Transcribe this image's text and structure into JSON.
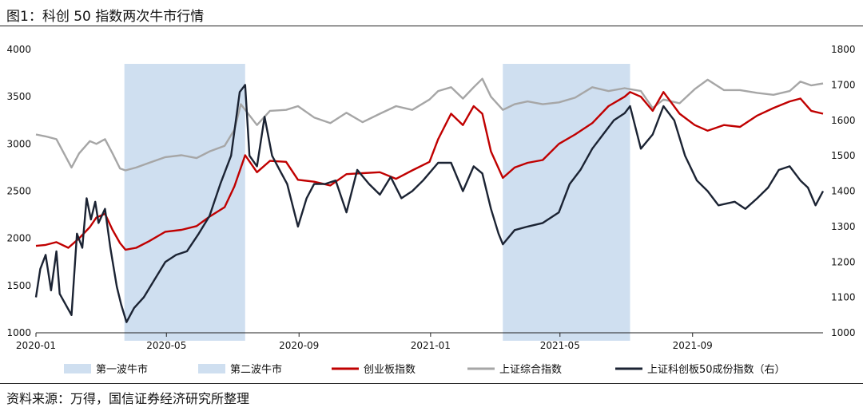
{
  "header": {
    "title": "图1：科创 50 指数两次牛市行情"
  },
  "footer": {
    "source": "资料来源：万得，国信证券经济研究所整理"
  },
  "colors": {
    "band": "#cfdff0",
    "chinext": "#c00000",
    "sse": "#a6a6a6",
    "star50": "#1b2333",
    "axis": "#222222"
  },
  "chart_data": {
    "type": "line",
    "x_ticks": [
      "2020-01",
      "2020-05",
      "2020-09",
      "2021-01",
      "2021-05",
      "2021-09"
    ],
    "xlim": [
      "2020-01-01",
      "2021-12-31"
    ],
    "y_left": {
      "ylim": [
        1000,
        4000
      ],
      "ticks": [
        1000,
        1500,
        2000,
        2500,
        3000,
        3500,
        4000
      ]
    },
    "y_right": {
      "ylim": [
        1000,
        1800
      ],
      "ticks": [
        1000,
        1100,
        1200,
        1300,
        1400,
        1500,
        1600,
        1700,
        1800
      ]
    },
    "bands": [
      {
        "name": "第一波牛市",
        "start": "2020-03-23",
        "end": "2020-07-13"
      },
      {
        "name": "第二波牛市",
        "start": "2021-03-09",
        "end": "2021-07-05"
      }
    ],
    "legend": [
      "第一波牛市",
      "第二波牛市",
      "创业板指数",
      "上证综合指数",
      "上证科创板50成份指数（右）"
    ],
    "series": [
      {
        "name": "创业板指数",
        "axis": "left",
        "points": [
          [
            "2020-01-01",
            1920
          ],
          [
            "2020-01-10",
            1930
          ],
          [
            "2020-01-20",
            1960
          ],
          [
            "2020-01-31",
            1900
          ],
          [
            "2020-02-10",
            2000
          ],
          [
            "2020-02-20",
            2120
          ],
          [
            "2020-02-26",
            2220
          ],
          [
            "2020-03-05",
            2260
          ],
          [
            "2020-03-12",
            2090
          ],
          [
            "2020-03-19",
            1950
          ],
          [
            "2020-03-24",
            1880
          ],
          [
            "2020-04-03",
            1900
          ],
          [
            "2020-04-15",
            1970
          ],
          [
            "2020-04-30",
            2070
          ],
          [
            "2020-05-15",
            2090
          ],
          [
            "2020-05-29",
            2130
          ],
          [
            "2020-06-10",
            2230
          ],
          [
            "2020-06-24",
            2330
          ],
          [
            "2020-07-03",
            2550
          ],
          [
            "2020-07-13",
            2880
          ],
          [
            "2020-07-24",
            2700
          ],
          [
            "2020-08-05",
            2820
          ],
          [
            "2020-08-20",
            2810
          ],
          [
            "2020-08-31",
            2620
          ],
          [
            "2020-09-15",
            2600
          ],
          [
            "2020-09-30",
            2560
          ],
          [
            "2020-10-15",
            2680
          ],
          [
            "2020-10-30",
            2690
          ],
          [
            "2020-11-15",
            2700
          ],
          [
            "2020-11-30",
            2630
          ],
          [
            "2020-12-15",
            2720
          ],
          [
            "2020-12-31",
            2810
          ],
          [
            "2021-01-08",
            3050
          ],
          [
            "2021-01-20",
            3320
          ],
          [
            "2021-01-31",
            3200
          ],
          [
            "2021-02-10",
            3400
          ],
          [
            "2021-02-18",
            3320
          ],
          [
            "2021-02-26",
            2920
          ],
          [
            "2021-03-09",
            2640
          ],
          [
            "2021-03-20",
            2750
          ],
          [
            "2021-04-01",
            2800
          ],
          [
            "2021-04-15",
            2830
          ],
          [
            "2021-04-30",
            3000
          ],
          [
            "2021-05-15",
            3100
          ],
          [
            "2021-05-31",
            3220
          ],
          [
            "2021-06-15",
            3400
          ],
          [
            "2021-06-30",
            3500
          ],
          [
            "2021-07-05",
            3550
          ],
          [
            "2021-07-15",
            3500
          ],
          [
            "2021-07-26",
            3350
          ],
          [
            "2021-08-05",
            3550
          ],
          [
            "2021-08-20",
            3320
          ],
          [
            "2021-09-03",
            3200
          ],
          [
            "2021-09-15",
            3140
          ],
          [
            "2021-09-30",
            3200
          ],
          [
            "2021-10-15",
            3180
          ],
          [
            "2021-10-31",
            3300
          ],
          [
            "2021-11-15",
            3380
          ],
          [
            "2021-11-30",
            3450
          ],
          [
            "2021-12-10",
            3480
          ],
          [
            "2021-12-20",
            3350
          ],
          [
            "2021-12-31",
            3320
          ]
        ]
      },
      {
        "name": "上证综合指数",
        "axis": "left",
        "points": [
          [
            "2020-01-01",
            3100
          ],
          [
            "2020-01-10",
            3080
          ],
          [
            "2020-01-20",
            3050
          ],
          [
            "2020-02-03",
            2750
          ],
          [
            "2020-02-10",
            2900
          ],
          [
            "2020-02-20",
            3030
          ],
          [
            "2020-02-26",
            3000
          ],
          [
            "2020-03-05",
            3050
          ],
          [
            "2020-03-12",
            2900
          ],
          [
            "2020-03-19",
            2740
          ],
          [
            "2020-03-24",
            2720
          ],
          [
            "2020-04-03",
            2750
          ],
          [
            "2020-04-15",
            2800
          ],
          [
            "2020-04-30",
            2860
          ],
          [
            "2020-05-15",
            2880
          ],
          [
            "2020-05-29",
            2850
          ],
          [
            "2020-06-10",
            2920
          ],
          [
            "2020-06-24",
            2980
          ],
          [
            "2020-07-03",
            3150
          ],
          [
            "2020-07-09",
            3420
          ],
          [
            "2020-07-24",
            3200
          ],
          [
            "2020-08-05",
            3350
          ],
          [
            "2020-08-20",
            3360
          ],
          [
            "2020-08-31",
            3400
          ],
          [
            "2020-09-15",
            3280
          ],
          [
            "2020-09-30",
            3220
          ],
          [
            "2020-10-15",
            3330
          ],
          [
            "2020-10-30",
            3230
          ],
          [
            "2020-11-15",
            3320
          ],
          [
            "2020-11-30",
            3400
          ],
          [
            "2020-12-15",
            3360
          ],
          [
            "2020-12-31",
            3470
          ],
          [
            "2021-01-08",
            3560
          ],
          [
            "2021-01-20",
            3600
          ],
          [
            "2021-01-31",
            3480
          ],
          [
            "2021-02-10",
            3600
          ],
          [
            "2021-02-18",
            3690
          ],
          [
            "2021-02-26",
            3500
          ],
          [
            "2021-03-09",
            3360
          ],
          [
            "2021-03-20",
            3420
          ],
          [
            "2021-04-01",
            3450
          ],
          [
            "2021-04-15",
            3420
          ],
          [
            "2021-04-30",
            3440
          ],
          [
            "2021-05-15",
            3490
          ],
          [
            "2021-05-31",
            3600
          ],
          [
            "2021-06-15",
            3560
          ],
          [
            "2021-06-30",
            3590
          ],
          [
            "2021-07-15",
            3560
          ],
          [
            "2021-07-26",
            3380
          ],
          [
            "2021-08-05",
            3470
          ],
          [
            "2021-08-20",
            3430
          ],
          [
            "2021-09-03",
            3580
          ],
          [
            "2021-09-15",
            3680
          ],
          [
            "2021-09-30",
            3570
          ],
          [
            "2021-10-15",
            3570
          ],
          [
            "2021-10-31",
            3540
          ],
          [
            "2021-11-15",
            3520
          ],
          [
            "2021-11-30",
            3560
          ],
          [
            "2021-12-10",
            3660
          ],
          [
            "2021-12-20",
            3620
          ],
          [
            "2021-12-31",
            3640
          ]
        ]
      },
      {
        "name": "上证科创板50成份指数（右）",
        "axis": "right",
        "points": [
          [
            "2020-01-01",
            1100
          ],
          [
            "2020-01-05",
            1180
          ],
          [
            "2020-01-10",
            1220
          ],
          [
            "2020-01-15",
            1120
          ],
          [
            "2020-01-20",
            1230
          ],
          [
            "2020-01-23",
            1110
          ],
          [
            "2020-02-03",
            1050
          ],
          [
            "2020-02-08",
            1280
          ],
          [
            "2020-02-13",
            1240
          ],
          [
            "2020-02-17",
            1380
          ],
          [
            "2020-02-21",
            1320
          ],
          [
            "2020-02-25",
            1370
          ],
          [
            "2020-02-28",
            1310
          ],
          [
            "2020-03-05",
            1350
          ],
          [
            "2020-03-10",
            1240
          ],
          [
            "2020-03-16",
            1130
          ],
          [
            "2020-03-20",
            1080
          ],
          [
            "2020-03-25",
            1030
          ],
          [
            "2020-04-01",
            1070
          ],
          [
            "2020-04-10",
            1100
          ],
          [
            "2020-04-20",
            1150
          ],
          [
            "2020-04-30",
            1200
          ],
          [
            "2020-05-10",
            1220
          ],
          [
            "2020-05-20",
            1230
          ],
          [
            "2020-05-31",
            1280
          ],
          [
            "2020-06-10",
            1330
          ],
          [
            "2020-06-20",
            1420
          ],
          [
            "2020-06-30",
            1500
          ],
          [
            "2020-07-08",
            1680
          ],
          [
            "2020-07-13",
            1700
          ],
          [
            "2020-07-17",
            1500
          ],
          [
            "2020-07-24",
            1470
          ],
          [
            "2020-07-31",
            1610
          ],
          [
            "2020-08-07",
            1500
          ],
          [
            "2020-08-14",
            1460
          ],
          [
            "2020-08-21",
            1420
          ],
          [
            "2020-08-31",
            1300
          ],
          [
            "2020-09-08",
            1380
          ],
          [
            "2020-09-15",
            1420
          ],
          [
            "2020-09-25",
            1420
          ],
          [
            "2020-10-05",
            1430
          ],
          [
            "2020-10-15",
            1340
          ],
          [
            "2020-10-25",
            1460
          ],
          [
            "2020-11-05",
            1420
          ],
          [
            "2020-11-15",
            1390
          ],
          [
            "2020-11-25",
            1440
          ],
          [
            "2020-12-05",
            1380
          ],
          [
            "2020-12-15",
            1400
          ],
          [
            "2020-12-25",
            1430
          ],
          [
            "2021-01-08",
            1480
          ],
          [
            "2021-01-20",
            1480
          ],
          [
            "2021-01-31",
            1400
          ],
          [
            "2021-02-10",
            1470
          ],
          [
            "2021-02-18",
            1450
          ],
          [
            "2021-02-26",
            1350
          ],
          [
            "2021-03-05",
            1280
          ],
          [
            "2021-03-09",
            1250
          ],
          [
            "2021-03-20",
            1290
          ],
          [
            "2021-04-01",
            1300
          ],
          [
            "2021-04-15",
            1310
          ],
          [
            "2021-04-30",
            1340
          ],
          [
            "2021-05-10",
            1420
          ],
          [
            "2021-05-20",
            1460
          ],
          [
            "2021-05-31",
            1520
          ],
          [
            "2021-06-10",
            1560
          ],
          [
            "2021-06-20",
            1600
          ],
          [
            "2021-06-30",
            1620
          ],
          [
            "2021-07-05",
            1640
          ],
          [
            "2021-07-15",
            1520
          ],
          [
            "2021-07-26",
            1560
          ],
          [
            "2021-08-05",
            1640
          ],
          [
            "2021-08-15",
            1600
          ],
          [
            "2021-08-25",
            1500
          ],
          [
            "2021-09-05",
            1430
          ],
          [
            "2021-09-15",
            1400
          ],
          [
            "2021-09-25",
            1360
          ],
          [
            "2021-10-10",
            1370
          ],
          [
            "2021-10-20",
            1350
          ],
          [
            "2021-10-31",
            1380
          ],
          [
            "2021-11-10",
            1410
          ],
          [
            "2021-11-20",
            1460
          ],
          [
            "2021-11-30",
            1470
          ],
          [
            "2021-12-10",
            1430
          ],
          [
            "2021-12-17",
            1410
          ],
          [
            "2021-12-24",
            1360
          ],
          [
            "2021-12-31",
            1400
          ]
        ]
      }
    ]
  }
}
